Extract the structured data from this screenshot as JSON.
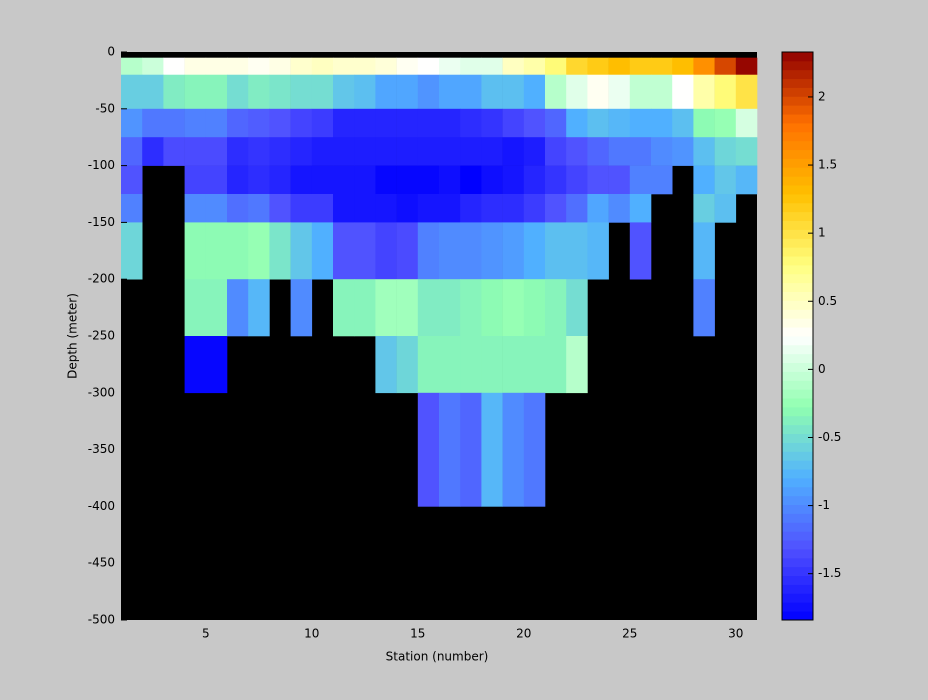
{
  "chart_data": {
    "type": "heatmap",
    "xlabel": "Station (number)",
    "ylabel": "Depth (meter)",
    "x": [
      1,
      2,
      3,
      4,
      5,
      6,
      7,
      8,
      9,
      10,
      11,
      12,
      13,
      14,
      15,
      16,
      17,
      18,
      19,
      20,
      21,
      22,
      23,
      24,
      25,
      26,
      27,
      28,
      29,
      30
    ],
    "y_edges": [
      -5,
      -20,
      -50,
      -75,
      -100,
      -125,
      -150,
      -200,
      -250,
      -300,
      -400
    ],
    "z": [
      [
        -0.1,
        0.0,
        0.25,
        0.35,
        0.35,
        0.35,
        0.3,
        0.35,
        0.45,
        0.5,
        0.45,
        0.45,
        0.4,
        0.3,
        0.25,
        0.15,
        0.1,
        0.1,
        0.5,
        0.6,
        0.8,
        1.1,
        1.2,
        1.3,
        1.2,
        1.2,
        1.3,
        1.6,
        2.0,
        2.3
      ],
      [
        -0.6,
        -0.6,
        -0.4,
        -0.35,
        -0.35,
        -0.5,
        -0.4,
        -0.45,
        -0.5,
        -0.5,
        -0.65,
        -0.7,
        -0.85,
        -0.85,
        -0.95,
        -0.85,
        -0.85,
        -0.7,
        -0.7,
        -0.8,
        -0.1,
        0.1,
        0.3,
        0.15,
        -0.05,
        -0.05,
        0.25,
        0.6,
        0.8,
        1.0
      ],
      [
        -0.95,
        -1.1,
        -1.1,
        -1.05,
        -1.05,
        -1.2,
        -1.25,
        -1.3,
        -1.4,
        -1.45,
        -1.6,
        -1.6,
        -1.6,
        -1.6,
        -1.6,
        -1.6,
        -1.55,
        -1.5,
        -1.4,
        -1.3,
        -1.2,
        -0.8,
        -0.7,
        -0.75,
        -0.8,
        -0.8,
        -0.7,
        -0.3,
        -0.25,
        0.05
      ],
      [
        -1.2,
        -1.55,
        -1.35,
        -1.35,
        -1.35,
        -1.55,
        -1.5,
        -1.55,
        -1.6,
        -1.65,
        -1.65,
        -1.65,
        -1.65,
        -1.65,
        -1.65,
        -1.65,
        -1.65,
        -1.65,
        -1.7,
        -1.65,
        -1.4,
        -1.3,
        -1.2,
        -1.1,
        -1.1,
        -1.0,
        -0.95,
        -0.7,
        -0.55,
        -0.5
      ],
      [
        -1.3,
        null,
        null,
        -1.4,
        -1.4,
        -1.6,
        -1.55,
        -1.6,
        -1.7,
        -1.7,
        -1.7,
        -1.7,
        -1.8,
        -1.8,
        -1.8,
        -1.75,
        -1.84,
        -1.75,
        -1.7,
        -1.6,
        -1.5,
        -1.4,
        -1.3,
        -1.3,
        -1.05,
        -1.05,
        null,
        -0.8,
        -0.65,
        -0.75
      ],
      [
        -1.05,
        null,
        null,
        -1.0,
        -1.0,
        -1.15,
        -1.1,
        -1.3,
        -1.45,
        -1.45,
        -1.7,
        -1.7,
        -1.7,
        -1.75,
        -1.7,
        -1.7,
        -1.6,
        -1.55,
        -1.55,
        -1.45,
        -1.3,
        -1.15,
        -0.85,
        -1.0,
        -0.8,
        null,
        null,
        -0.6,
        -0.7,
        null
      ],
      [
        -0.55,
        null,
        null,
        -0.3,
        -0.3,
        -0.3,
        -0.25,
        -0.45,
        -0.65,
        -0.8,
        -1.3,
        -1.3,
        -1.4,
        -1.35,
        -1.05,
        -1.0,
        -1.0,
        -0.95,
        -0.9,
        -0.8,
        -0.7,
        -0.7,
        -0.75,
        null,
        -1.3,
        null,
        null,
        -0.75,
        null,
        null
      ],
      [
        null,
        null,
        null,
        -0.35,
        -0.35,
        -1.0,
        -0.75,
        null,
        -1.0,
        null,
        -0.35,
        -0.35,
        -0.2,
        -0.2,
        -0.4,
        -0.4,
        -0.35,
        -0.3,
        -0.25,
        -0.3,
        -0.35,
        -0.5,
        null,
        null,
        null,
        null,
        null,
        -1.05,
        null,
        null
      ],
      [
        null,
        null,
        null,
        -1.8,
        -1.8,
        null,
        null,
        null,
        null,
        null,
        null,
        null,
        -0.65,
        -0.55,
        -0.35,
        -0.35,
        -0.35,
        -0.35,
        -0.35,
        -0.35,
        -0.35,
        -0.1,
        null,
        null,
        null,
        null,
        null,
        null,
        null,
        null
      ],
      [
        null,
        null,
        null,
        null,
        null,
        null,
        null,
        null,
        null,
        null,
        null,
        null,
        null,
        null,
        -1.3,
        -1.1,
        -1.2,
        -0.75,
        -1.0,
        -1.1,
        null,
        null,
        null,
        null,
        null,
        null,
        null,
        null,
        null,
        null
      ]
    ],
    "xlim": [
      1,
      31
    ],
    "ylim": [
      -500,
      0
    ],
    "xticks": [
      5,
      10,
      15,
      20,
      25,
      30
    ],
    "yticks": [
      0,
      -50,
      -100,
      -150,
      -200,
      -250,
      -300,
      -350,
      -400,
      -450,
      -500
    ],
    "clim": [
      -1.84,
      2.33
    ],
    "cticks": [
      -1.5,
      -1,
      -0.5,
      0,
      0.5,
      1,
      1.5,
      2
    ],
    "colormap": [
      "#0000ff",
      "#5050ff",
      "#50b0ff",
      "#90ffb0",
      "#ffffff",
      "#ffff80",
      "#ffc000",
      "#ff7000",
      "#900000"
    ],
    "background": "#000000"
  }
}
